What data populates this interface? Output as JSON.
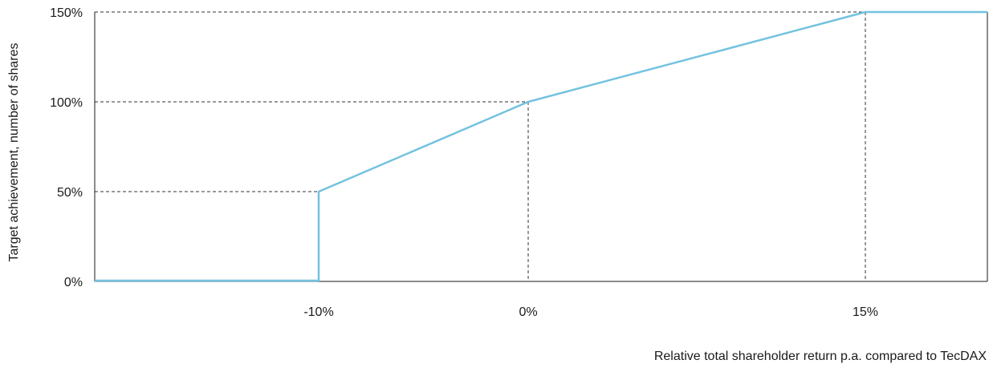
{
  "chart_data": {
    "type": "line",
    "title": "",
    "xlabel": "Relative total shareholder return p.a. compared to TecDAX",
    "ylabel": "Target achievement, number of shares",
    "x_tick_labels": [
      "-10%",
      "0%",
      "15%"
    ],
    "x_ticks": [
      -10,
      0,
      15
    ],
    "y_tick_labels": [
      "0%",
      "50%",
      "100%",
      "150%"
    ],
    "y_ticks": [
      0,
      50,
      100,
      150
    ],
    "xlim": [
      -20,
      20
    ],
    "ylim": [
      0,
      150
    ],
    "grid": false,
    "reference_lines": [
      {
        "x": -10,
        "y": 50
      },
      {
        "x": 0,
        "y": 100
      },
      {
        "x": 15,
        "y": 150
      }
    ],
    "series": [
      {
        "x": [
          -20,
          -10,
          -10,
          0,
          15,
          20
        ],
        "y": [
          0,
          0,
          50,
          100,
          150,
          150
        ],
        "color": "#72c2df"
      }
    ],
    "colors": {
      "line": "#72c2df",
      "axis": "#1a1a1a",
      "guide": "#333333"
    }
  }
}
